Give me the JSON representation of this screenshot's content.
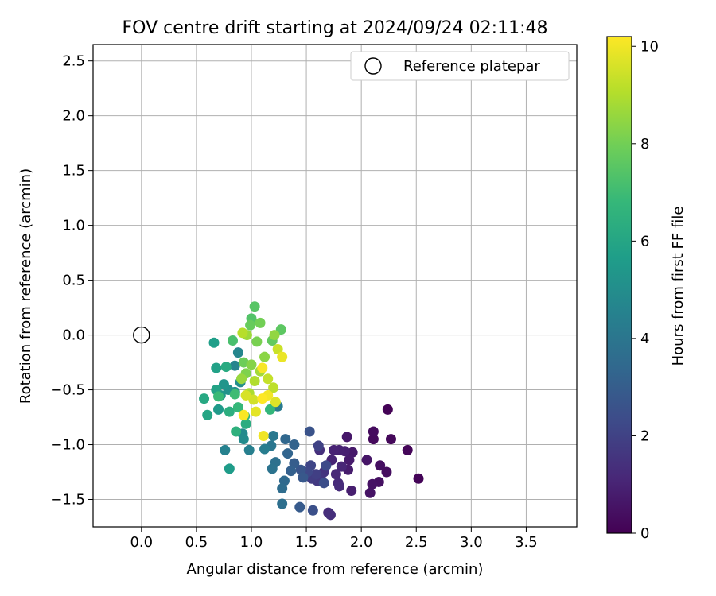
{
  "chart_data": {
    "type": "scatter",
    "title": "FOV centre drift starting at 2024/09/24 02:11:48",
    "xlabel": "Angular distance from reference (arcmin)",
    "ylabel": "Rotation from reference (arcmin)",
    "xlim": [
      -0.44,
      3.96
    ],
    "ylim": [
      -1.75,
      2.65
    ],
    "xticks": [
      0.0,
      0.5,
      1.0,
      1.5,
      2.0,
      2.5,
      3.0,
      3.5
    ],
    "xtick_labels": [
      "0.0",
      "0.5",
      "1.0",
      "1.5",
      "2.0",
      "2.5",
      "3.0",
      "3.5"
    ],
    "yticks": [
      2.5,
      2.0,
      1.5,
      1.0,
      0.5,
      0.0,
      -0.5,
      -1.0,
      -1.5
    ],
    "ytick_labels": [
      "2.5",
      "2.0",
      "1.5",
      "1.0",
      "0.5",
      "0.0",
      "−0.5",
      "−1.0",
      "−1.5"
    ],
    "grid": true,
    "legend": {
      "position": "top-right",
      "entries": [
        "Reference platepar"
      ]
    },
    "reference_point": {
      "x": 0.0,
      "y": 0.0,
      "label": "Reference platepar"
    },
    "colorbar": {
      "label": "Hours from first FF file",
      "range": [
        0,
        10.2
      ],
      "ticks": [
        0,
        2,
        4,
        6,
        8,
        10
      ],
      "tick_labels": [
        "0",
        "2",
        "4",
        "6",
        "8",
        "10"
      ],
      "colormap": "viridis",
      "colors": [
        "#440154",
        "#482878",
        "#3e4a89",
        "#31688e",
        "#26828e",
        "#1f9e89",
        "#35b779",
        "#6ece58",
        "#b5de2b",
        "#fde725"
      ]
    },
    "series": [
      {
        "points": [
          {
            "x": 2.24,
            "y": -0.68,
            "t": 0.05
          },
          {
            "x": 2.52,
            "y": -1.31,
            "t": 0.1
          },
          {
            "x": 2.42,
            "y": -1.05,
            "t": 0.15
          },
          {
            "x": 2.27,
            "y": -0.95,
            "t": 0.2
          },
          {
            "x": 2.11,
            "y": -0.95,
            "t": 0.25
          },
          {
            "x": 2.11,
            "y": -0.88,
            "t": 0.3
          },
          {
            "x": 2.23,
            "y": -1.25,
            "t": 0.35
          },
          {
            "x": 2.17,
            "y": -1.19,
            "t": 0.4
          },
          {
            "x": 2.16,
            "y": -1.34,
            "t": 0.45
          },
          {
            "x": 2.1,
            "y": -1.36,
            "t": 0.5
          },
          {
            "x": 2.08,
            "y": -1.44,
            "t": 0.55
          },
          {
            "x": 2.05,
            "y": -1.14,
            "t": 0.6
          },
          {
            "x": 1.87,
            "y": -0.93,
            "t": 0.65
          },
          {
            "x": 1.92,
            "y": -1.07,
            "t": 0.7
          },
          {
            "x": 1.89,
            "y": -1.14,
            "t": 0.75
          },
          {
            "x": 1.88,
            "y": -1.23,
            "t": 0.8
          },
          {
            "x": 1.91,
            "y": -1.42,
            "t": 0.85
          },
          {
            "x": 1.85,
            "y": -1.06,
            "t": 0.9
          },
          {
            "x": 1.8,
            "y": -1.05,
            "t": 0.95
          },
          {
            "x": 1.75,
            "y": -1.05,
            "t": 1.0
          },
          {
            "x": 1.73,
            "y": -1.14,
            "t": 1.05
          },
          {
            "x": 1.82,
            "y": -1.2,
            "t": 1.1
          },
          {
            "x": 1.77,
            "y": -1.27,
            "t": 1.15
          },
          {
            "x": 1.79,
            "y": -1.35,
            "t": 1.2
          },
          {
            "x": 1.8,
            "y": -1.38,
            "t": 1.25
          },
          {
            "x": 1.7,
            "y": -1.62,
            "t": 1.3
          },
          {
            "x": 1.72,
            "y": -1.64,
            "t": 1.35
          },
          {
            "x": 1.62,
            "y": -1.05,
            "t": 1.4
          },
          {
            "x": 1.66,
            "y": -1.25,
            "t": 1.5
          },
          {
            "x": 1.63,
            "y": -1.3,
            "t": 1.6
          },
          {
            "x": 1.6,
            "y": -1.33,
            "t": 1.7
          },
          {
            "x": 1.55,
            "y": -1.31,
            "t": 1.8
          },
          {
            "x": 1.59,
            "y": -1.27,
            "t": 1.9
          },
          {
            "x": 1.61,
            "y": -1.01,
            "t": 2.0
          },
          {
            "x": 1.54,
            "y": -1.19,
            "t": 2.1
          },
          {
            "x": 1.51,
            "y": -1.25,
            "t": 2.2
          },
          {
            "x": 1.68,
            "y": -1.19,
            "t": 2.3
          },
          {
            "x": 1.66,
            "y": -1.35,
            "t": 2.4
          },
          {
            "x": 1.56,
            "y": -1.6,
            "t": 2.5
          },
          {
            "x": 1.53,
            "y": -0.88,
            "t": 2.6
          },
          {
            "x": 1.45,
            "y": -1.23,
            "t": 2.7
          },
          {
            "x": 1.47,
            "y": -1.3,
            "t": 2.8
          },
          {
            "x": 1.44,
            "y": -1.57,
            "t": 2.9
          },
          {
            "x": 1.39,
            "y": -1.17,
            "t": 3.0
          },
          {
            "x": 1.36,
            "y": -1.24,
            "t": 3.1
          },
          {
            "x": 1.39,
            "y": -1.0,
            "t": 3.2
          },
          {
            "x": 1.33,
            "y": -1.08,
            "t": 3.3
          },
          {
            "x": 1.31,
            "y": -0.95,
            "t": 3.4
          },
          {
            "x": 1.3,
            "y": -1.33,
            "t": 3.5
          },
          {
            "x": 1.28,
            "y": -1.4,
            "t": 3.6
          },
          {
            "x": 1.28,
            "y": -1.54,
            "t": 3.7
          },
          {
            "x": 1.22,
            "y": -1.16,
            "t": 3.8
          },
          {
            "x": 1.19,
            "y": -1.22,
            "t": 3.9
          },
          {
            "x": 1.18,
            "y": -1.01,
            "t": 4.0
          },
          {
            "x": 1.2,
            "y": -0.92,
            "t": 4.1
          },
          {
            "x": 1.24,
            "y": -0.65,
            "t": 4.2
          },
          {
            "x": 1.12,
            "y": -1.04,
            "t": 4.3
          },
          {
            "x": 0.98,
            "y": -1.05,
            "t": 4.4
          },
          {
            "x": 0.76,
            "y": -1.05,
            "t": 4.5
          },
          {
            "x": 0.85,
            "y": -0.28,
            "t": 4.6
          },
          {
            "x": 0.88,
            "y": -0.16,
            "t": 4.7
          },
          {
            "x": 0.92,
            "y": -0.9,
            "t": 4.8
          },
          {
            "x": 0.93,
            "y": -0.95,
            "t": 4.9
          },
          {
            "x": 0.9,
            "y": -0.43,
            "t": 5.0
          },
          {
            "x": 0.85,
            "y": -0.52,
            "t": 5.1
          },
          {
            "x": 0.79,
            "y": -0.5,
            "t": 5.2
          },
          {
            "x": 0.75,
            "y": -0.45,
            "t": 5.3
          },
          {
            "x": 0.72,
            "y": -0.55,
            "t": 5.4
          },
          {
            "x": 0.7,
            "y": -0.68,
            "t": 5.5
          },
          {
            "x": 0.8,
            "y": -1.22,
            "t": 5.6
          },
          {
            "x": 0.66,
            "y": -0.07,
            "t": 5.7
          },
          {
            "x": 0.68,
            "y": -0.3,
            "t": 5.8
          },
          {
            "x": 0.68,
            "y": -0.5,
            "t": 5.9
          },
          {
            "x": 0.6,
            "y": -0.73,
            "t": 6.0
          },
          {
            "x": 0.57,
            "y": -0.58,
            "t": 6.1
          },
          {
            "x": 0.77,
            "y": -0.29,
            "t": 6.2
          },
          {
            "x": 0.95,
            "y": -0.81,
            "t": 6.3
          },
          {
            "x": 0.8,
            "y": -0.7,
            "t": 6.4
          },
          {
            "x": 0.86,
            "y": -0.88,
            "t": 6.5
          },
          {
            "x": 0.94,
            "y": -0.74,
            "t": 6.6
          },
          {
            "x": 1.17,
            "y": -0.68,
            "t": 6.7
          },
          {
            "x": 0.88,
            "y": -0.66,
            "t": 6.8
          },
          {
            "x": 0.7,
            "y": -0.56,
            "t": 6.9
          },
          {
            "x": 0.85,
            "y": -0.54,
            "t": 7.0
          },
          {
            "x": 0.83,
            "y": -0.05,
            "t": 7.2
          },
          {
            "x": 1.0,
            "y": 0.15,
            "t": 7.4
          },
          {
            "x": 1.03,
            "y": 0.26,
            "t": 7.5
          },
          {
            "x": 1.27,
            "y": 0.05,
            "t": 7.6
          },
          {
            "x": 1.19,
            "y": -0.05,
            "t": 7.7
          },
          {
            "x": 0.99,
            "y": 0.09,
            "t": 7.8
          },
          {
            "x": 0.93,
            "y": -0.25,
            "t": 7.9
          },
          {
            "x": 1.08,
            "y": 0.11,
            "t": 8.0
          },
          {
            "x": 1.05,
            "y": -0.06,
            "t": 8.1
          },
          {
            "x": 0.95,
            "y": -0.35,
            "t": 8.2
          },
          {
            "x": 1.0,
            "y": -0.27,
            "t": 8.3
          },
          {
            "x": 1.12,
            "y": -0.2,
            "t": 8.4
          },
          {
            "x": 1.21,
            "y": 0.0,
            "t": 8.5
          },
          {
            "x": 0.91,
            "y": -0.4,
            "t": 8.6
          },
          {
            "x": 0.96,
            "y": 0.0,
            "t": 8.7
          },
          {
            "x": 1.08,
            "y": -0.33,
            "t": 8.8
          },
          {
            "x": 0.98,
            "y": -0.53,
            "t": 8.9
          },
          {
            "x": 1.03,
            "y": -0.42,
            "t": 9.0
          },
          {
            "x": 0.92,
            "y": 0.02,
            "t": 9.1
          },
          {
            "x": 1.2,
            "y": -0.48,
            "t": 9.2
          },
          {
            "x": 1.15,
            "y": -0.4,
            "t": 9.3
          },
          {
            "x": 1.24,
            "y": -0.13,
            "t": 9.4
          },
          {
            "x": 1.02,
            "y": -0.59,
            "t": 9.5
          },
          {
            "x": 0.95,
            "y": -0.55,
            "t": 9.6
          },
          {
            "x": 1.22,
            "y": -0.61,
            "t": 9.7
          },
          {
            "x": 1.04,
            "y": -0.7,
            "t": 9.8
          },
          {
            "x": 1.28,
            "y": -0.2,
            "t": 9.9
          },
          {
            "x": 1.11,
            "y": -0.92,
            "t": 10.0
          },
          {
            "x": 1.15,
            "y": -0.55,
            "t": 10.05
          },
          {
            "x": 1.1,
            "y": -0.3,
            "t": 10.1
          },
          {
            "x": 0.93,
            "y": -0.73,
            "t": 10.15
          },
          {
            "x": 1.1,
            "y": -0.58,
            "t": 10.2
          }
        ]
      }
    ]
  }
}
